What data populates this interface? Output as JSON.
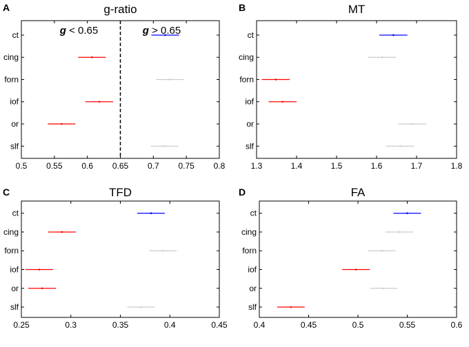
{
  "chart_data": [
    {
      "type": "forest",
      "panel": "A",
      "title": "g-ratio",
      "categories": [
        "ct",
        "cing",
        "forn",
        "iof",
        "or",
        "slf"
      ],
      "xlim": [
        0.5,
        0.8
      ],
      "xticks": [
        "0.5",
        "0.55",
        "0.6",
        "0.65",
        "0.7",
        "0.75",
        "0.8"
      ],
      "xtick_values": [
        0.5,
        0.55,
        0.6,
        0.65,
        0.7,
        0.75,
        0.8
      ],
      "reference_line": 0.65,
      "annotations": [
        {
          "g": "g",
          "rest": " < 0.65",
          "side": "left"
        },
        {
          "g": "g",
          "rest": " > 0.65",
          "side": "right"
        }
      ],
      "estimates": [
        {
          "category": "ct",
          "mean": 0.718,
          "low": 0.697,
          "high": 0.739,
          "color": "#0000ff"
        },
        {
          "category": "cing",
          "mean": 0.607,
          "low": 0.586,
          "high": 0.628,
          "color": "#ff0000"
        },
        {
          "category": "forn",
          "mean": 0.725,
          "low": 0.704,
          "high": 0.746,
          "color": "#cccccc"
        },
        {
          "category": "iof",
          "mean": 0.618,
          "low": 0.597,
          "high": 0.639,
          "color": "#ff0000"
        },
        {
          "category": "or",
          "mean": 0.561,
          "low": 0.54,
          "high": 0.582,
          "color": "#ff0000"
        },
        {
          "category": "slf",
          "mean": 0.717,
          "low": 0.696,
          "high": 0.738,
          "color": "#cccccc"
        }
      ]
    },
    {
      "type": "forest",
      "panel": "B",
      "title": "MT",
      "categories": [
        "ct",
        "cing",
        "forn",
        "iof",
        "or",
        "slf"
      ],
      "xlim": [
        1.3,
        1.8
      ],
      "xticks": [
        "1.3",
        "1.4",
        "1.5",
        "1.6",
        "1.7",
        "1.8"
      ],
      "xtick_values": [
        1.3,
        1.4,
        1.5,
        1.6,
        1.7,
        1.8
      ],
      "estimates": [
        {
          "category": "ct",
          "mean": 1.642,
          "low": 1.607,
          "high": 1.677,
          "color": "#0000ff"
        },
        {
          "category": "cing",
          "mean": 1.614,
          "low": 1.579,
          "high": 1.649,
          "color": "#cccccc"
        },
        {
          "category": "forn",
          "mean": 1.348,
          "low": 1.313,
          "high": 1.383,
          "color": "#ff0000"
        },
        {
          "category": "iof",
          "mean": 1.365,
          "low": 1.33,
          "high": 1.4,
          "color": "#ff0000"
        },
        {
          "category": "or",
          "mean": 1.689,
          "low": 1.654,
          "high": 1.724,
          "color": "#cccccc"
        },
        {
          "category": "slf",
          "mean": 1.659,
          "low": 1.624,
          "high": 1.694,
          "color": "#cccccc"
        }
      ]
    },
    {
      "type": "forest",
      "panel": "C",
      "title": "TFD",
      "categories": [
        "ct",
        "cing",
        "forn",
        "iof",
        "or",
        "slf"
      ],
      "xlim": [
        0.25,
        0.45
      ],
      "xticks": [
        "0.25",
        "0.3",
        "0.35",
        "0.4",
        "0.45"
      ],
      "xtick_values": [
        0.25,
        0.3,
        0.35,
        0.4,
        0.45
      ],
      "estimates": [
        {
          "category": "ct",
          "mean": 0.381,
          "low": 0.367,
          "high": 0.395,
          "color": "#0000ff"
        },
        {
          "category": "cing",
          "mean": 0.291,
          "low": 0.277,
          "high": 0.305,
          "color": "#ff0000"
        },
        {
          "category": "forn",
          "mean": 0.393,
          "low": 0.379,
          "high": 0.407,
          "color": "#cccccc"
        },
        {
          "category": "iof",
          "mean": 0.268,
          "low": 0.254,
          "high": 0.282,
          "color": "#ff0000"
        },
        {
          "category": "or",
          "mean": 0.271,
          "low": 0.257,
          "high": 0.285,
          "color": "#ff0000"
        },
        {
          "category": "slf",
          "mean": 0.371,
          "low": 0.357,
          "high": 0.385,
          "color": "#cccccc"
        }
      ]
    },
    {
      "type": "forest",
      "panel": "D",
      "title": "FA",
      "categories": [
        "ct",
        "cing",
        "forn",
        "iof",
        "or",
        "slf"
      ],
      "xlim": [
        0.4,
        0.6
      ],
      "xticks": [
        "0.4",
        "0.45",
        "0.5",
        "0.55",
        "0.6"
      ],
      "xtick_values": [
        0.4,
        0.45,
        0.5,
        0.55,
        0.6
      ],
      "estimates": [
        {
          "category": "ct",
          "mean": 0.55,
          "low": 0.536,
          "high": 0.564,
          "color": "#0000ff"
        },
        {
          "category": "cing",
          "mean": 0.542,
          "low": 0.528,
          "high": 0.556,
          "color": "#cccccc"
        },
        {
          "category": "forn",
          "mean": 0.524,
          "low": 0.51,
          "high": 0.538,
          "color": "#cccccc"
        },
        {
          "category": "iof",
          "mean": 0.498,
          "low": 0.484,
          "high": 0.512,
          "color": "#ff0000"
        },
        {
          "category": "or",
          "mean": 0.526,
          "low": 0.512,
          "high": 0.54,
          "color": "#cccccc"
        },
        {
          "category": "slf",
          "mean": 0.432,
          "low": 0.418,
          "high": 0.446,
          "color": "#ff0000"
        }
      ]
    }
  ]
}
